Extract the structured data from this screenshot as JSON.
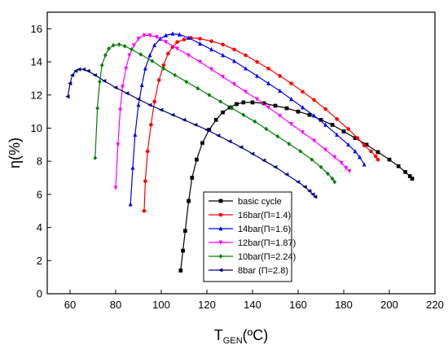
{
  "chart_data": {
    "type": "line",
    "xlabel": {
      "main": "T",
      "sub": "GEN",
      "unit": "(ºC)"
    },
    "ylabel": "η(%)",
    "xlim": [
      50,
      220
    ],
    "ylim": [
      0,
      17
    ],
    "x_ticks": [
      60,
      80,
      100,
      120,
      140,
      160,
      180,
      200,
      220
    ],
    "y_ticks": [
      0,
      2,
      4,
      6,
      8,
      10,
      12,
      14,
      16
    ],
    "grid": false,
    "legend_position": "center-right",
    "series": [
      {
        "name": "basic cycle",
        "color": "#000000",
        "marker": "square",
        "points": [
          [
            108.5,
            1.4
          ],
          [
            109.5,
            2.6
          ],
          [
            110.5,
            3.8
          ],
          [
            112,
            5.6
          ],
          [
            113.5,
            7
          ],
          [
            115.5,
            8.1
          ],
          [
            118,
            9.1
          ],
          [
            121,
            9.9
          ],
          [
            124,
            10.5
          ],
          [
            127,
            10.95
          ],
          [
            130,
            11.25
          ],
          [
            133,
            11.45
          ],
          [
            136,
            11.55
          ],
          [
            140,
            11.55
          ],
          [
            145,
            11.5
          ],
          [
            150,
            11.35
          ],
          [
            155,
            11.2
          ],
          [
            160,
            11
          ],
          [
            165,
            10.8
          ],
          [
            170,
            10.5
          ],
          [
            175,
            10.2
          ],
          [
            180,
            9.8
          ],
          [
            185,
            9.4
          ],
          [
            190,
            9
          ],
          [
            195,
            8.55
          ],
          [
            200,
            8.1
          ],
          [
            204,
            7.7
          ],
          [
            207,
            7.35
          ],
          [
            209,
            7.1
          ],
          [
            210,
            6.95
          ]
        ]
      },
      {
        "name": "16bar(Π=1.4)",
        "color": "#ff0000",
        "marker": "circle",
        "points": [
          [
            92.5,
            5
          ],
          [
            93,
            6.8
          ],
          [
            94,
            8.6
          ],
          [
            95.5,
            10.2
          ],
          [
            97,
            11.6
          ],
          [
            99,
            12.9
          ],
          [
            101,
            13.8
          ],
          [
            103,
            14.5
          ],
          [
            105,
            14.9
          ],
          [
            107,
            15.2
          ],
          [
            110,
            15.35
          ],
          [
            113,
            15.45
          ],
          [
            117,
            15.4
          ],
          [
            122,
            15.25
          ],
          [
            127,
            15.05
          ],
          [
            132,
            14.75
          ],
          [
            137,
            14.4
          ],
          [
            142,
            14
          ],
          [
            147,
            13.6
          ],
          [
            152,
            13.15
          ],
          [
            157,
            12.7
          ],
          [
            162,
            12.2
          ],
          [
            167,
            11.7
          ],
          [
            172,
            11.15
          ],
          [
            177,
            10.55
          ],
          [
            182,
            9.95
          ],
          [
            186,
            9.4
          ],
          [
            189,
            8.95
          ],
          [
            192,
            8.6
          ],
          [
            194,
            8.3
          ],
          [
            195,
            8.1
          ]
        ]
      },
      {
        "name": "14bar(Π=1.6)",
        "color": "#0000ff",
        "marker": "triangle-up",
        "points": [
          [
            86.5,
            5.4
          ],
          [
            87.5,
            7.6
          ],
          [
            88.5,
            9.6
          ],
          [
            90,
            11.4
          ],
          [
            91.5,
            12.6
          ],
          [
            93,
            13.6
          ],
          [
            95,
            14.4
          ],
          [
            97,
            15
          ],
          [
            99.5,
            15.4
          ],
          [
            102,
            15.6
          ],
          [
            105,
            15.7
          ],
          [
            108,
            15.65
          ],
          [
            112,
            15.45
          ],
          [
            117,
            15.1
          ],
          [
            122,
            14.75
          ],
          [
            127,
            14.4
          ],
          [
            132,
            14.05
          ],
          [
            137,
            13.6
          ],
          [
            142,
            13.15
          ],
          [
            147,
            12.7
          ],
          [
            152,
            12.25
          ],
          [
            157,
            11.75
          ],
          [
            162,
            11.25
          ],
          [
            167,
            10.75
          ],
          [
            172,
            10.2
          ],
          [
            177,
            9.6
          ],
          [
            182,
            9
          ],
          [
            185,
            8.6
          ],
          [
            187,
            8.25
          ],
          [
            189,
            7.8
          ]
        ]
      },
      {
        "name": "12bar(Π=1.87)",
        "color": "#ff00ff",
        "marker": "triangle-down",
        "points": [
          [
            80,
            6.4
          ],
          [
            81,
            9
          ],
          [
            82,
            11.1
          ],
          [
            83,
            12.5
          ],
          [
            84.5,
            13.6
          ],
          [
            86,
            14.4
          ],
          [
            88,
            15
          ],
          [
            90,
            15.4
          ],
          [
            92.5,
            15.6
          ],
          [
            95,
            15.6
          ],
          [
            98,
            15.5
          ],
          [
            102,
            15.2
          ],
          [
            107,
            14.8
          ],
          [
            112,
            14.4
          ],
          [
            117,
            14
          ],
          [
            122,
            13.55
          ],
          [
            127,
            13.1
          ],
          [
            132,
            12.65
          ],
          [
            137,
            12.2
          ],
          [
            142,
            11.75
          ],
          [
            147,
            11.25
          ],
          [
            152,
            10.75
          ],
          [
            157,
            10.25
          ],
          [
            162,
            9.75
          ],
          [
            167,
            9.25
          ],
          [
            172,
            8.7
          ],
          [
            176,
            8.25
          ],
          [
            179,
            7.9
          ],
          [
            181,
            7.6
          ],
          [
            182.5,
            7.4
          ]
        ]
      },
      {
        "name": "10bar(Π=2.24)",
        "color": "#008000",
        "marker": "diamond",
        "points": [
          [
            71,
            8.2
          ],
          [
            72,
            11.2
          ],
          [
            73,
            12.8
          ],
          [
            74,
            13.8
          ],
          [
            75.5,
            14.4
          ],
          [
            77,
            14.8
          ],
          [
            79,
            15
          ],
          [
            81.5,
            15.05
          ],
          [
            84,
            14.95
          ],
          [
            87,
            14.75
          ],
          [
            91,
            14.45
          ],
          [
            96,
            14.05
          ],
          [
            101,
            13.6
          ],
          [
            106,
            13.2
          ],
          [
            111,
            12.8
          ],
          [
            116,
            12.4
          ],
          [
            121,
            12
          ],
          [
            126,
            11.6
          ],
          [
            131,
            11.2
          ],
          [
            136,
            10.8
          ],
          [
            141,
            10.4
          ],
          [
            146,
            9.95
          ],
          [
            151,
            9.5
          ],
          [
            156,
            9.05
          ],
          [
            161,
            8.6
          ],
          [
            166,
            8.1
          ],
          [
            170,
            7.65
          ],
          [
            173,
            7.25
          ],
          [
            175,
            6.95
          ],
          [
            176,
            6.75
          ]
        ]
      },
      {
        "name": "8bar  (Π=2.8)",
        "color": "#000080",
        "marker": "triangle-left",
        "points": [
          [
            59,
            11.9
          ],
          [
            60,
            12.7
          ],
          [
            61,
            13.2
          ],
          [
            62.5,
            13.45
          ],
          [
            64,
            13.55
          ],
          [
            66,
            13.55
          ],
          [
            68,
            13.45
          ],
          [
            71,
            13.2
          ],
          [
            75,
            12.85
          ],
          [
            80,
            12.45
          ],
          [
            85,
            12.1
          ],
          [
            90,
            11.75
          ],
          [
            95,
            11.4
          ],
          [
            100,
            11.1
          ],
          [
            105,
            10.8
          ],
          [
            110,
            10.5
          ],
          [
            115,
            10.2
          ],
          [
            120,
            9.9
          ],
          [
            125,
            9.55
          ],
          [
            130,
            9.2
          ],
          [
            135,
            8.85
          ],
          [
            140,
            8.45
          ],
          [
            145,
            8.05
          ],
          [
            150,
            7.65
          ],
          [
            155,
            7.2
          ],
          [
            160,
            6.75
          ],
          [
            163,
            6.45
          ],
          [
            165,
            6.2
          ],
          [
            166.5,
            6
          ],
          [
            167.5,
            5.85
          ]
        ]
      }
    ]
  }
}
